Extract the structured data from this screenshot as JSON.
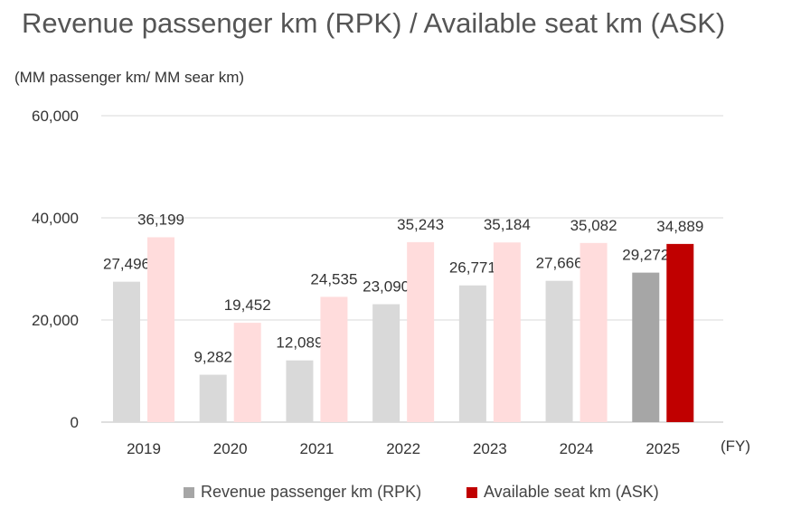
{
  "title": "Revenue passenger km (RPK) / Available seat km (ASK)",
  "unit_label": "(MM passenger km/ MM sear km)",
  "x_suffix": "(FY)",
  "chart_data": {
    "type": "bar",
    "categories": [
      "2019",
      "2020",
      "2021",
      "2022",
      "2023",
      "2024",
      "2025"
    ],
    "series": [
      {
        "name": "Revenue passenger km (RPK)",
        "values": [
          27496,
          9282,
          12089,
          23090,
          26771,
          27666,
          29272
        ],
        "labels": [
          "27,496",
          "9,282",
          "12,089",
          "23,090",
          "26,771",
          "27,666",
          "29,272"
        ]
      },
      {
        "name": "Available seat km (ASK)",
        "values": [
          36199,
          19452,
          24535,
          35243,
          35184,
          35082,
          34889
        ],
        "labels": [
          "36,199",
          "19,452",
          "24,535",
          "35,243",
          "35,184",
          "35,082",
          "34,889"
        ]
      }
    ],
    "ylim": [
      0,
      60000
    ],
    "yticks": [
      0,
      20000,
      40000,
      60000
    ],
    "ytick_labels": [
      "0",
      "20,000",
      "40,000",
      "60,000"
    ],
    "grid": true,
    "legend_position": "bottom",
    "colors": {
      "rpk_past": "#d9d9d9",
      "ask_past": "#ffdcdc",
      "rpk_highlight": "#a6a6a6",
      "ask_highlight": "#c00000",
      "grid": "#d9d9d9"
    },
    "highlight_category": "2025"
  },
  "legend": {
    "rpk_label": "Revenue passenger km (RPK)",
    "ask_label": "Available seat km (ASK)",
    "rpk_color": "#a6a6a6",
    "ask_color": "#c00000"
  }
}
